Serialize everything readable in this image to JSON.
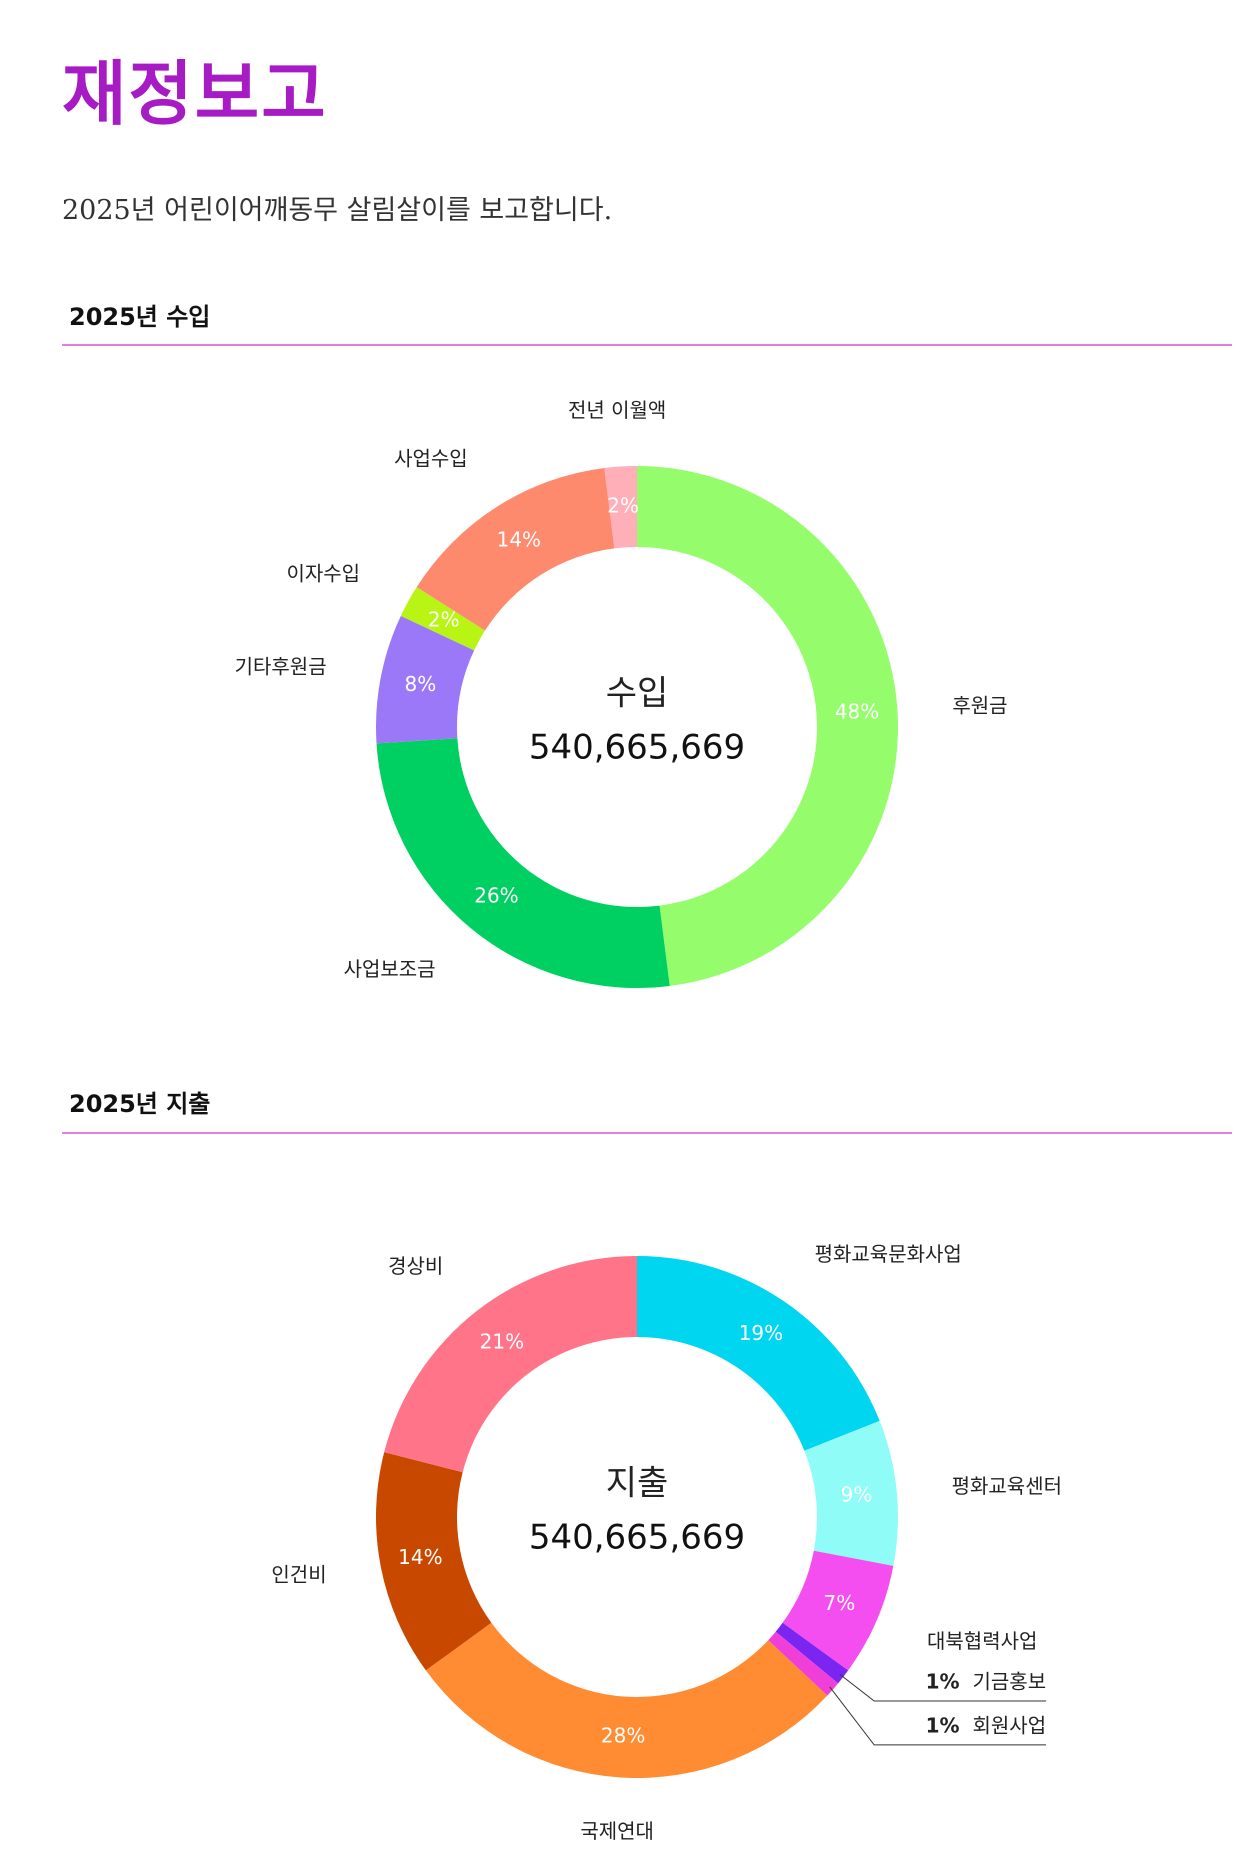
{
  "header": {
    "title": "재정보고",
    "subtitle": "2025년 어린이어깨동무 살림살이를 보고합니다."
  },
  "chart_data": [
    {
      "type": "donut",
      "title": "2025년 수입",
      "center_label": "수입",
      "total": "540,665,669",
      "categories": [
        "후원금",
        "사업보조금",
        "기타후원금",
        "이자수입",
        "사업수입",
        "전년 이월액"
      ],
      "values": [
        48,
        26,
        8,
        2,
        14,
        2
      ],
      "value_labels": [
        "48%",
        "26%",
        "8%",
        "2%",
        "14%",
        "2%"
      ],
      "colors": [
        "#95fc6b",
        "#00d062",
        "#9b78f8",
        "#b8f514",
        "#fd8a6d",
        "#ffafb8"
      ]
    },
    {
      "type": "donut",
      "title": "2025년 지출",
      "center_label": "지출",
      "total": "540,665,669",
      "categories": [
        "평화교육문화사업",
        "평화교육센터",
        "대북협력사업",
        "기금홍보",
        "회원사업",
        "국제연대",
        "인건비",
        "경상비"
      ],
      "values": [
        19,
        9,
        7,
        1,
        1,
        28,
        14,
        21
      ],
      "value_labels": [
        "19%",
        "9%",
        "7%",
        "1%",
        "1%",
        "28%",
        "14%",
        "21%"
      ],
      "colors": [
        "#00d6ef",
        "#8ffcf7",
        "#f44ef0",
        "#7a26f0",
        "#f03fd9",
        "#ff8c33",
        "#c94800",
        "#ff7489"
      ]
    }
  ]
}
